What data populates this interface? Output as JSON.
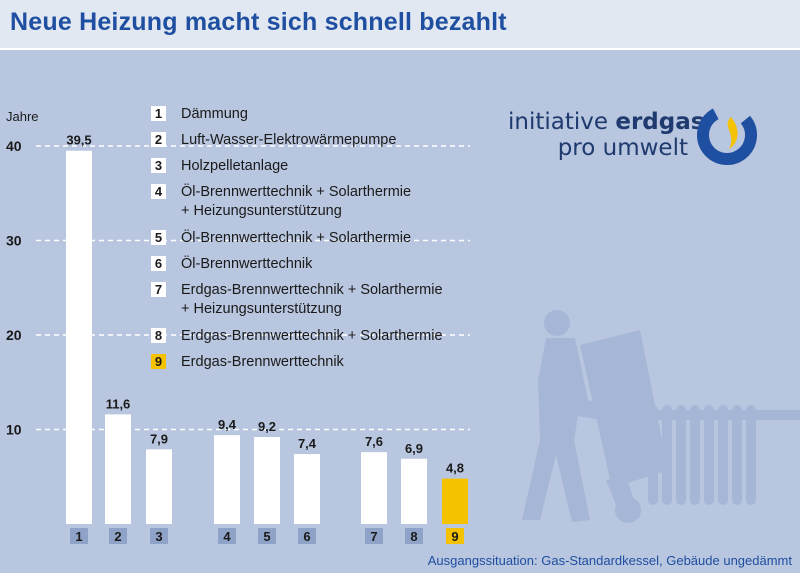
{
  "title": "Neue Heizung macht sich schnell bezahlt",
  "brand": {
    "word1": "initiative",
    "word2": "erdgas",
    "line2": "pro umwelt"
  },
  "footnote": "Ausgangssituation: Gas-Standardkessel, Gebäude ungedämmt",
  "colors": {
    "bar": "#ffffff",
    "highlight": "#f5c200",
    "background": "#b8c6df",
    "axis_label_bg": "#8fa3c8",
    "title": "#1f4fa0"
  },
  "chart_data": {
    "type": "bar",
    "ylabel": "Jahre",
    "ylim": [
      0,
      42
    ],
    "yticks": [
      10,
      20,
      30,
      40
    ],
    "grid": "dashed",
    "categories": [
      "1",
      "2",
      "3",
      "4",
      "5",
      "6",
      "7",
      "8",
      "9"
    ],
    "values": [
      39.5,
      11.6,
      7.9,
      9.4,
      9.2,
      7.4,
      7.6,
      6.9,
      4.8
    ],
    "value_labels": [
      "39,5",
      "11,6",
      "7,9",
      "9,4",
      "9,2",
      "7,4",
      "7,6",
      "6,9",
      "4,8"
    ],
    "highlight_index": 8,
    "legend": [
      {
        "num": "1",
        "lines": [
          "Dämmung"
        ]
      },
      {
        "num": "2",
        "lines": [
          "Luft-Wasser-Elektrowärmepumpe"
        ]
      },
      {
        "num": "3",
        "lines": [
          "Holzpelletanlage"
        ]
      },
      {
        "num": "4",
        "lines": [
          "Öl-Brennwerttechnik + Solarthermie",
          "+ Heizungsunterstützung"
        ]
      },
      {
        "num": "5",
        "lines": [
          "Öl-Brennwerttechnik + Solarthermie"
        ]
      },
      {
        "num": "6",
        "lines": [
          "Öl-Brennwerttechnik"
        ]
      },
      {
        "num": "7",
        "lines": [
          "Erdgas-Brennwerttechnik + Solarthermie",
          "+ Heizungsunterstützung"
        ]
      },
      {
        "num": "8",
        "lines": [
          "Erdgas-Brennwerttechnik + Solarthermie"
        ]
      },
      {
        "num": "9",
        "lines": [
          "Erdgas-Brennwerttechnik"
        ]
      }
    ]
  }
}
